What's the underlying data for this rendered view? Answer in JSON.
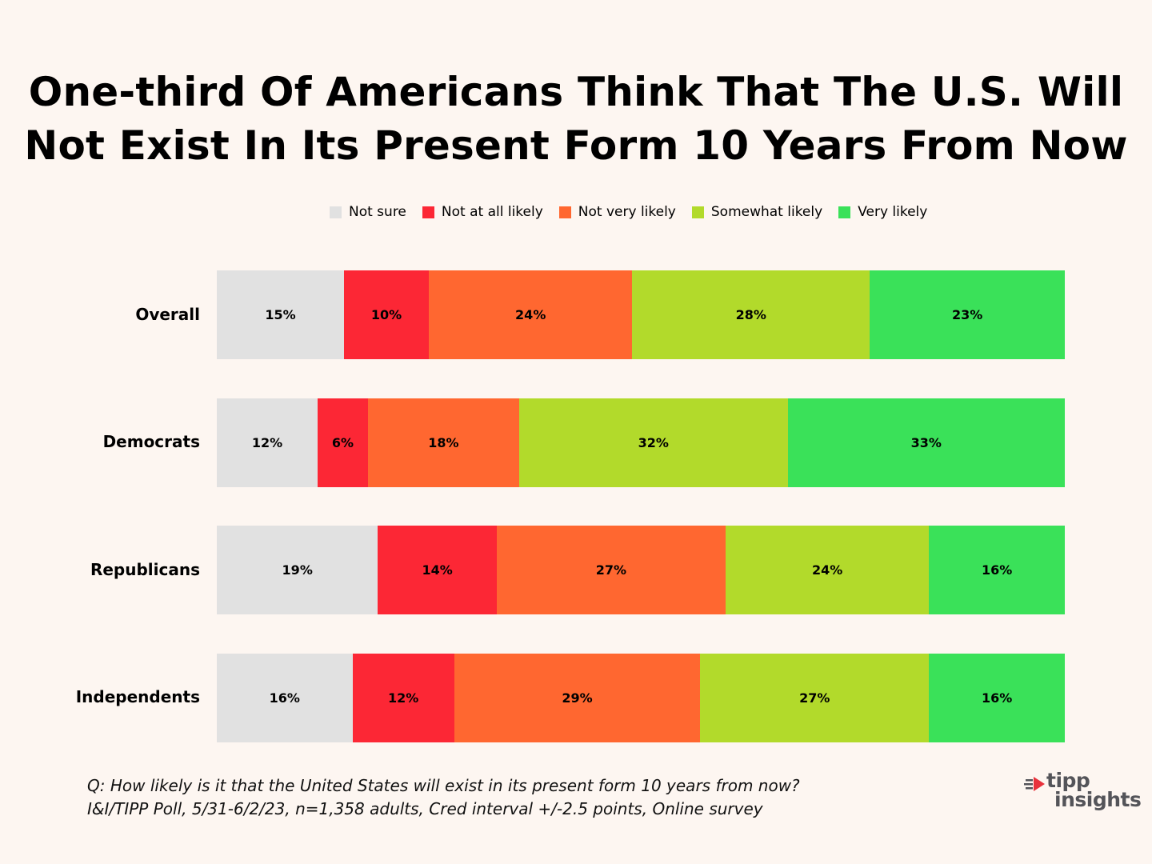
{
  "chart_data": {
    "type": "bar",
    "orientation": "horizontal",
    "stacked": true,
    "title": "One-third Of Americans Think That The U.S. Will Not Exist In Its Present Form 10 Years From Now",
    "title_lines": [
      "One-third Of Americans Think That The U.S. Will",
      "Not Exist In Its Present Form 10 Years From Now"
    ],
    "categories": [
      "Overall",
      "Democrats",
      "Republicans",
      "Independents"
    ],
    "series": [
      {
        "name": "Not sure",
        "color": "#e1e1e1",
        "values": [
          15,
          12,
          19,
          16
        ]
      },
      {
        "name": "Not at all likely",
        "color": "#fc2735",
        "values": [
          10,
          6,
          14,
          12
        ]
      },
      {
        "name": "Not very likely",
        "color": "#ff6730",
        "values": [
          24,
          18,
          27,
          29
        ]
      },
      {
        "name": "Somewhat likely",
        "color": "#b2da2b",
        "values": [
          28,
          32,
          24,
          27
        ]
      },
      {
        "name": "Very likely",
        "color": "#3ae159",
        "values": [
          23,
          33,
          16,
          16
        ]
      }
    ],
    "value_suffix": "%",
    "legend_position": "top-center",
    "xlabel": "",
    "ylabel": ""
  },
  "footnote": {
    "question": "Q:  How likely is it that the United States will exist in its present form 10 years from now?",
    "source": "I&I/TIPP Poll, 5/31-6/2/23, n=1,358 adults, Cred interval +/-2.5 points, Online survey"
  },
  "logo": {
    "line1": "tipp",
    "line2": "insights",
    "text_color": "#545459",
    "accent_color": "#e8323c"
  }
}
